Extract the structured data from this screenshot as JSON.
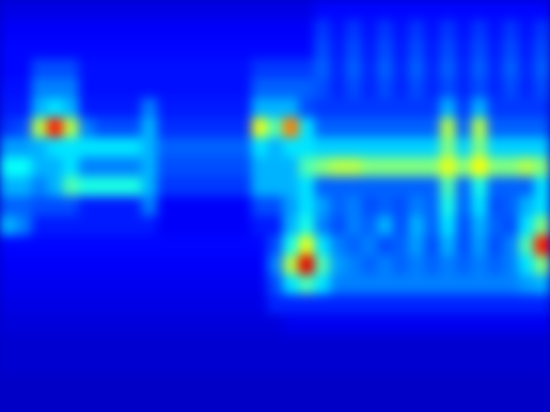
{
  "chart_data": {
    "type": "heatmap",
    "tick_labels": false,
    "color": "jet",
    "color_range": [
      0,
      1
    ],
    "cells": [
      [
        0.1,
        0.1,
        0.1,
        0.1,
        0.1,
        0.1,
        0.1,
        0.1,
        0.1,
        0.1,
        0.1,
        0.1,
        0.1,
        0.1,
        0.1,
        0.1,
        0.1,
        0.1,
        0.1,
        0.1,
        0.13,
        0.13,
        0.13,
        0.13,
        0.13,
        0.13,
        0.13,
        0.13,
        0.13,
        0.13,
        0.13,
        0.13,
        0.13,
        0.13,
        0.13
      ],
      [
        0.12,
        0.12,
        0.12,
        0.12,
        0.12,
        0.12,
        0.12,
        0.12,
        0.12,
        0.12,
        0.12,
        0.12,
        0.12,
        0.12,
        0.12,
        0.12,
        0.12,
        0.12,
        0.12,
        0.12,
        0.18,
        0.14,
        0.18,
        0.14,
        0.18,
        0.14,
        0.18,
        0.14,
        0.18,
        0.14,
        0.18,
        0.14,
        0.18,
        0.14,
        0.18
      ],
      [
        0.13,
        0.13,
        0.13,
        0.13,
        0.13,
        0.13,
        0.13,
        0.13,
        0.13,
        0.13,
        0.13,
        0.13,
        0.13,
        0.13,
        0.13,
        0.13,
        0.13,
        0.13,
        0.13,
        0.13,
        0.2,
        0.15,
        0.2,
        0.15,
        0.2,
        0.15,
        0.2,
        0.15,
        0.2,
        0.15,
        0.2,
        0.15,
        0.2,
        0.15,
        0.2
      ],
      [
        0.13,
        0.13,
        0.2,
        0.2,
        0.2,
        0.14,
        0.14,
        0.14,
        0.14,
        0.14,
        0.14,
        0.14,
        0.14,
        0.14,
        0.14,
        0.14,
        0.18,
        0.18,
        0.18,
        0.18,
        0.22,
        0.16,
        0.22,
        0.16,
        0.22,
        0.16,
        0.22,
        0.16,
        0.22,
        0.16,
        0.22,
        0.16,
        0.22,
        0.16,
        0.22
      ],
      [
        0.14,
        0.14,
        0.25,
        0.25,
        0.25,
        0.14,
        0.14,
        0.14,
        0.14,
        0.14,
        0.14,
        0.14,
        0.14,
        0.14,
        0.14,
        0.14,
        0.22,
        0.22,
        0.22,
        0.22,
        0.2,
        0.16,
        0.2,
        0.16,
        0.2,
        0.16,
        0.2,
        0.16,
        0.2,
        0.16,
        0.2,
        0.16,
        0.2,
        0.16,
        0.2
      ],
      [
        0.15,
        0.15,
        0.3,
        0.35,
        0.3,
        0.15,
        0.15,
        0.15,
        0.15,
        0.25,
        0.15,
        0.15,
        0.15,
        0.15,
        0.15,
        0.15,
        0.3,
        0.3,
        0.3,
        0.2,
        0.18,
        0.18,
        0.18,
        0.18,
        0.18,
        0.18,
        0.18,
        0.18,
        0.3,
        0.18,
        0.3,
        0.18,
        0.18,
        0.18,
        0.18
      ],
      [
        0.18,
        0.2,
        0.55,
        0.85,
        0.55,
        0.25,
        0.2,
        0.2,
        0.2,
        0.3,
        0.17,
        0.17,
        0.17,
        0.17,
        0.17,
        0.17,
        0.6,
        0.45,
        0.75,
        0.35,
        0.22,
        0.22,
        0.22,
        0.22,
        0.22,
        0.22,
        0.22,
        0.22,
        0.55,
        0.22,
        0.55,
        0.22,
        0.22,
        0.22,
        0.22
      ],
      [
        0.28,
        0.28,
        0.3,
        0.35,
        0.35,
        0.35,
        0.35,
        0.35,
        0.35,
        0.3,
        0.22,
        0.22,
        0.22,
        0.22,
        0.22,
        0.22,
        0.35,
        0.3,
        0.35,
        0.35,
        0.33,
        0.33,
        0.33,
        0.33,
        0.33,
        0.33,
        0.33,
        0.33,
        0.5,
        0.33,
        0.5,
        0.33,
        0.33,
        0.33,
        0.33
      ],
      [
        0.38,
        0.38,
        0.3,
        0.3,
        0.35,
        0.25,
        0.25,
        0.25,
        0.25,
        0.3,
        0.2,
        0.2,
        0.2,
        0.2,
        0.2,
        0.2,
        0.3,
        0.3,
        0.3,
        0.45,
        0.5,
        0.55,
        0.55,
        0.5,
        0.5,
        0.5,
        0.5,
        0.5,
        0.6,
        0.5,
        0.62,
        0.5,
        0.5,
        0.55,
        0.5
      ],
      [
        0.3,
        0.3,
        0.25,
        0.3,
        0.45,
        0.4,
        0.4,
        0.4,
        0.4,
        0.3,
        0.18,
        0.18,
        0.18,
        0.18,
        0.18,
        0.18,
        0.3,
        0.3,
        0.3,
        0.35,
        0.22,
        0.22,
        0.22,
        0.22,
        0.22,
        0.22,
        0.22,
        0.22,
        0.45,
        0.22,
        0.4,
        0.22,
        0.22,
        0.22,
        0.35
      ],
      [
        0.22,
        0.22,
        0.2,
        0.2,
        0.2,
        0.15,
        0.15,
        0.15,
        0.15,
        0.25,
        0.12,
        0.12,
        0.12,
        0.12,
        0.12,
        0.12,
        0.2,
        0.2,
        0.28,
        0.35,
        0.28,
        0.22,
        0.25,
        0.2,
        0.22,
        0.2,
        0.25,
        0.22,
        0.4,
        0.22,
        0.35,
        0.2,
        0.22,
        0.3,
        0.35
      ],
      [
        0.3,
        0.25,
        0.15,
        0.15,
        0.15,
        0.15,
        0.15,
        0.15,
        0.15,
        0.15,
        0.12,
        0.12,
        0.12,
        0.12,
        0.12,
        0.12,
        0.15,
        0.15,
        0.3,
        0.4,
        0.25,
        0.2,
        0.25,
        0.22,
        0.3,
        0.2,
        0.3,
        0.22,
        0.35,
        0.2,
        0.3,
        0.22,
        0.2,
        0.35,
        0.5
      ],
      [
        0.13,
        0.13,
        0.13,
        0.13,
        0.13,
        0.13,
        0.13,
        0.13,
        0.13,
        0.13,
        0.13,
        0.13,
        0.13,
        0.13,
        0.13,
        0.13,
        0.13,
        0.2,
        0.4,
        0.6,
        0.35,
        0.25,
        0.22,
        0.25,
        0.2,
        0.22,
        0.28,
        0.2,
        0.3,
        0.2,
        0.28,
        0.2,
        0.25,
        0.45,
        0.85
      ],
      [
        0.12,
        0.12,
        0.12,
        0.12,
        0.12,
        0.12,
        0.12,
        0.12,
        0.12,
        0.12,
        0.12,
        0.12,
        0.12,
        0.12,
        0.12,
        0.12,
        0.12,
        0.25,
        0.55,
        0.9,
        0.45,
        0.28,
        0.25,
        0.22,
        0.25,
        0.22,
        0.25,
        0.22,
        0.25,
        0.22,
        0.25,
        0.22,
        0.25,
        0.35,
        0.5
      ],
      [
        0.11,
        0.11,
        0.11,
        0.11,
        0.11,
        0.11,
        0.11,
        0.11,
        0.11,
        0.11,
        0.11,
        0.11,
        0.11,
        0.11,
        0.11,
        0.11,
        0.11,
        0.2,
        0.35,
        0.45,
        0.35,
        0.25,
        0.25,
        0.25,
        0.25,
        0.25,
        0.25,
        0.25,
        0.25,
        0.25,
        0.25,
        0.25,
        0.25,
        0.28,
        0.3
      ],
      [
        0.1,
        0.1,
        0.1,
        0.1,
        0.1,
        0.1,
        0.1,
        0.1,
        0.1,
        0.1,
        0.1,
        0.1,
        0.1,
        0.1,
        0.1,
        0.1,
        0.1,
        0.16,
        0.16,
        0.16,
        0.16,
        0.16,
        0.16,
        0.16,
        0.16,
        0.16,
        0.16,
        0.16,
        0.16,
        0.16,
        0.16,
        0.16,
        0.16,
        0.16,
        0.16
      ],
      [
        0.09,
        0.09,
        0.09,
        0.09,
        0.09,
        0.09,
        0.09,
        0.09,
        0.09,
        0.09,
        0.09,
        0.09,
        0.09,
        0.09,
        0.09,
        0.09,
        0.09,
        0.09,
        0.11,
        0.11,
        0.11,
        0.11,
        0.11,
        0.11,
        0.11,
        0.11,
        0.11,
        0.11,
        0.11,
        0.11,
        0.11,
        0.11,
        0.11,
        0.11,
        0.11
      ],
      [
        0.08,
        0.08,
        0.08,
        0.08,
        0.08,
        0.08,
        0.08,
        0.08,
        0.08,
        0.08,
        0.08,
        0.08,
        0.08,
        0.08,
        0.08,
        0.08,
        0.08,
        0.08,
        0.08,
        0.08,
        0.08,
        0.08,
        0.08,
        0.08,
        0.08,
        0.08,
        0.08,
        0.08,
        0.08,
        0.08,
        0.08,
        0.08,
        0.08,
        0.08,
        0.08
      ],
      [
        0.08,
        0.08,
        0.08,
        0.08,
        0.08,
        0.08,
        0.08,
        0.08,
        0.08,
        0.08,
        0.08,
        0.08,
        0.08,
        0.08,
        0.08,
        0.08,
        0.08,
        0.08,
        0.08,
        0.08,
        0.08,
        0.08,
        0.08,
        0.08,
        0.08,
        0.08,
        0.08,
        0.08,
        0.08,
        0.08,
        0.08,
        0.08,
        0.08,
        0.08,
        0.08
      ],
      [
        0.07,
        0.07,
        0.07,
        0.07,
        0.07,
        0.07,
        0.07,
        0.07,
        0.07,
        0.07,
        0.07,
        0.07,
        0.07,
        0.07,
        0.07,
        0.07,
        0.07,
        0.07,
        0.07,
        0.07,
        0.07,
        0.07,
        0.07,
        0.07,
        0.07,
        0.07,
        0.07,
        0.07,
        0.07,
        0.07,
        0.07,
        0.07,
        0.07,
        0.07,
        0.07
      ],
      [
        0.07,
        0.07,
        0.07,
        0.07,
        0.07,
        0.07,
        0.07,
        0.07,
        0.07,
        0.07,
        0.07,
        0.07,
        0.07,
        0.07,
        0.07,
        0.07,
        0.07,
        0.07,
        0.07,
        0.07,
        0.07,
        0.07,
        0.07,
        0.07,
        0.07,
        0.07,
        0.07,
        0.07,
        0.07,
        0.07,
        0.07,
        0.07,
        0.07,
        0.07,
        0.07
      ]
    ]
  }
}
